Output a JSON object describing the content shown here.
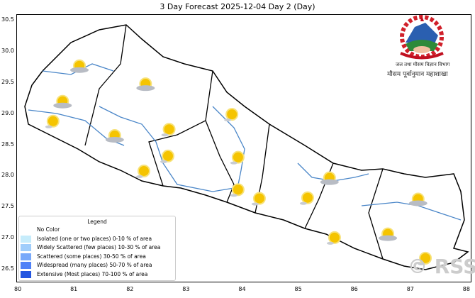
{
  "title": "3 Day Forecast 2025-12-04 Day 2 (Day)",
  "x_ticks": [
    "80",
    "81",
    "82",
    "83",
    "84",
    "85",
    "86",
    "87",
    "88"
  ],
  "y_ticks": [
    "26.5",
    "27.0",
    "27.5",
    "28.0",
    "28.5",
    "29.0",
    "29.5",
    "30.0",
    "30.5"
  ],
  "legend": {
    "title": "Legend",
    "items": [
      {
        "label": "No Color",
        "color": ""
      },
      {
        "label": "Isolated (one or two places)  0-10 % of area",
        "color": "#c6ecfb"
      },
      {
        "label": "Widely Scattered (few places)  10-30 % of area",
        "color": "#9fcdfb"
      },
      {
        "label": "Scattered (some places)  30-50 % of area",
        "color": "#78a9fa"
      },
      {
        "label": "Widespread (many places)  50-70 % of area",
        "color": "#4f81f7"
      },
      {
        "label": "Extensive (Most places)  70-100 % of area",
        "color": "#2456e0"
      }
    ]
  },
  "logo": {
    "line1": "जल तथा मौसम विज्ञान विभाग",
    "line2": "मौसम पूर्वानुमान महाशाखा"
  },
  "watermark": "© RSS",
  "map_extent": {
    "lon": [
      80,
      88
    ],
    "lat": [
      26.5,
      30.5
    ]
  },
  "forecast_icons": [
    {
      "lon": 81.1,
      "lat": 29.74,
      "type": "partly-cloudy"
    },
    {
      "lon": 82.28,
      "lat": 29.45,
      "type": "partly-cloudy"
    },
    {
      "lon": 80.8,
      "lat": 29.17,
      "type": "partly-cloudy"
    },
    {
      "lon": 80.63,
      "lat": 28.85,
      "type": "sunny"
    },
    {
      "lon": 81.73,
      "lat": 28.62,
      "type": "partly-cloudy"
    },
    {
      "lon": 82.7,
      "lat": 28.72,
      "type": "sunny"
    },
    {
      "lon": 83.82,
      "lat": 28.96,
      "type": "sunny"
    },
    {
      "lon": 82.68,
      "lat": 28.29,
      "type": "sunny"
    },
    {
      "lon": 82.25,
      "lat": 28.05,
      "type": "sunny"
    },
    {
      "lon": 83.93,
      "lat": 28.27,
      "type": "sunny"
    },
    {
      "lon": 83.93,
      "lat": 27.75,
      "type": "sunny"
    },
    {
      "lon": 84.31,
      "lat": 27.61,
      "type": "sunny"
    },
    {
      "lon": 85.17,
      "lat": 27.62,
      "type": "sunny"
    },
    {
      "lon": 85.56,
      "lat": 27.94,
      "type": "partly-cloudy"
    },
    {
      "lon": 87.14,
      "lat": 27.6,
      "type": "partly-cloudy"
    },
    {
      "lon": 85.65,
      "lat": 26.98,
      "type": "sunny"
    },
    {
      "lon": 86.6,
      "lat": 27.04,
      "type": "partly-cloudy"
    },
    {
      "lon": 87.27,
      "lat": 26.65,
      "type": "sunny"
    }
  ]
}
